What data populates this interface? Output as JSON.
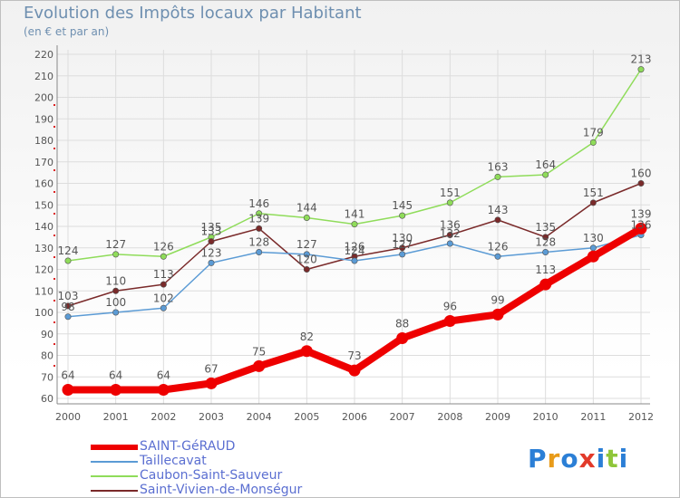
{
  "header": {
    "title": "Evolution des Impôts locaux par Habitant",
    "subtitle": "(en € et par an)"
  },
  "logo": {
    "text": "Proxiti"
  },
  "chart_data": {
    "type": "line",
    "title": "Evolution des Impôts locaux par Habitant",
    "subtitle": "(en € et par an)",
    "xlabel": "",
    "ylabel": "",
    "ylim": [
      60,
      220
    ],
    "ytick_step": 10,
    "categories": [
      "2000",
      "2001",
      "2002",
      "2003",
      "2004",
      "2005",
      "2006",
      "2007",
      "2008",
      "2009",
      "2010",
      "2011",
      "2012"
    ],
    "series": [
      {
        "name": "SAINT-GéRAUD",
        "color": "#ee0000",
        "values": [
          64,
          64,
          64,
          67,
          75,
          82,
          73,
          88,
          96,
          99,
          113,
          126,
          139
        ],
        "labels": [
          "64",
          "64",
          "64",
          "67",
          "75",
          "82",
          "73",
          "88",
          "96",
          "99",
          "113",
          "",
          "139"
        ]
      },
      {
        "name": "Taillecavat",
        "color": "#5b9bd5",
        "values": [
          98,
          100,
          102,
          123,
          128,
          127,
          124,
          127,
          132,
          126,
          128,
          130,
          136
        ],
        "labels": [
          "98",
          "100",
          "102",
          "123",
          "128",
          "127",
          "124",
          "127",
          "132",
          "126",
          "128",
          "130",
          "136"
        ]
      },
      {
        "name": "Caubon-Saint-Sauveur",
        "color": "#8fdc5a",
        "values": [
          124,
          127,
          126,
          135,
          146,
          144,
          141,
          145,
          151,
          163,
          164,
          179,
          213
        ],
        "labels": [
          "124",
          "127",
          "126",
          "135",
          "146",
          "144",
          "141",
          "145",
          "151",
          "163",
          "164",
          "179",
          "213"
        ]
      },
      {
        "name": "Saint-Vivien-de-Monségur",
        "color": "#7a2a2a",
        "values": [
          103,
          110,
          113,
          133,
          139,
          120,
          126,
          130,
          136,
          143,
          135,
          151,
          160
        ],
        "labels": [
          "103",
          "110",
          "113",
          "133",
          "139",
          "120",
          "126",
          "130",
          "136",
          "143",
          "135",
          "151",
          "160"
        ]
      }
    ],
    "legend_position": "bottom-left",
    "grid": true
  }
}
